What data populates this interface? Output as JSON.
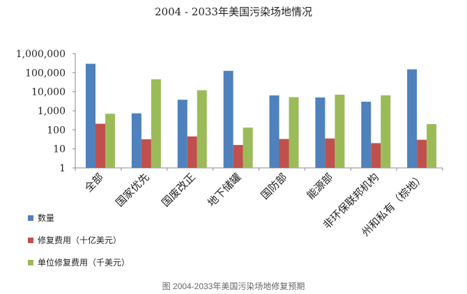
{
  "chart_data": {
    "type": "bar",
    "title": "2004 - 2033年美国污染场地情况",
    "caption": "图   2004-2033年美国污染场地修复预期",
    "xlabel": "",
    "ylabel": "",
    "yscale": "log",
    "ylim": [
      1,
      1000000
    ],
    "yticks": [
      "1",
      "10",
      "100",
      "1,000",
      "10,000",
      "100,000",
      "1,000,000"
    ],
    "grid": false,
    "legend_position": "bottom-left",
    "categories": [
      "全部",
      "国家优先",
      "国废改正",
      "地下储罐",
      "国防部",
      "能源部",
      "非环保联邦机构",
      "州和私有（棕地）"
    ],
    "series": [
      {
        "name": "数量",
        "color": "#4F81BD",
        "values": [
          294000,
          736,
          3800,
          125000,
          6400,
          5000,
          3000,
          150000
        ]
      },
      {
        "name": "修复费用（十亿美元）",
        "color": "#C0504D",
        "values": [
          209,
          32,
          45,
          16,
          33,
          35,
          20,
          30
        ]
      },
      {
        "name": "单位修复费用（千美元）",
        "color": "#9BBB59",
        "values": [
          700,
          45000,
          12000,
          130,
          5200,
          7000,
          6500,
          200
        ]
      }
    ]
  }
}
